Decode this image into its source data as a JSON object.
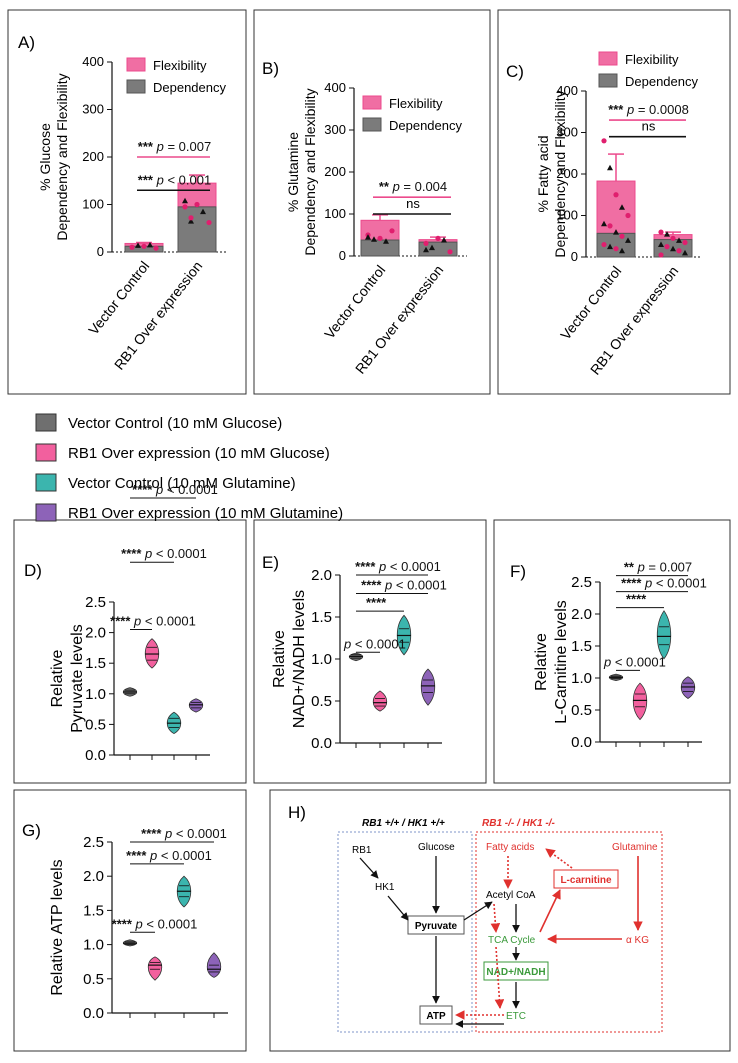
{
  "colors": {
    "flexibility": "#f06ea3",
    "flexibility_line": "#ec4a8c",
    "dependency": "#7b7b7b",
    "vector_glucose": "#6f6f6f",
    "rb1_glucose": "#f2609e",
    "vector_glutamine": "#3bb5ae",
    "rb1_glutamine": "#8d63b8",
    "pathway_red": "#e0312e",
    "pathway_green": "#3b9a3b",
    "pathway_blue_dash": "#7f95c9"
  },
  "top_categories": [
    "Vector Control",
    "RB1 Over expression"
  ],
  "top_legend": [
    "Flexibility",
    "Dependency"
  ],
  "legend": [
    {
      "label": "Vector Control (10 mM Glucose)",
      "color_key": "vector_glucose"
    },
    {
      "label": "RB1 Over expression (10 mM Glucose)",
      "color_key": "rb1_glucose"
    },
    {
      "label": "Vector Control (10 mM Glutamine)",
      "color_key": "vector_glutamine"
    },
    {
      "label": "RB1 Over expression (10 mM Glutamine)",
      "color_key": "rb1_glutamine"
    }
  ],
  "chart_data": [
    {
      "panel": "A)",
      "type": "bar",
      "ylabel_lines": [
        "% Glucose",
        "Dependency and Flexibility"
      ],
      "ylim": [
        0,
        400
      ],
      "yticks": [
        0,
        100,
        200,
        300,
        400
      ],
      "categories": [
        "Vector Control",
        "RB1 Over expression"
      ],
      "series": [
        {
          "name": "Dependency",
          "values": [
            12,
            95
          ]
        },
        {
          "name": "Flexibility",
          "values": [
            6,
            50
          ]
        }
      ],
      "error_top": [
        20,
        162
      ],
      "points": [
        [
          10,
          14,
          12,
          15,
          8
        ],
        [
          95,
          65,
          100,
          85,
          62,
          108,
          72
        ]
      ],
      "annotations": [
        {
          "stars": "***",
          "text": "p = 0.007",
          "color": "pink",
          "y": 200
        },
        {
          "stars": "***",
          "text": "p < 0.001",
          "color": "black",
          "y": 130
        }
      ]
    },
    {
      "panel": "B)",
      "type": "bar",
      "ylabel_lines": [
        "% Glutamine",
        "Dependency and Flexibility"
      ],
      "ylim": [
        0,
        400
      ],
      "yticks": [
        0,
        100,
        200,
        300,
        400
      ],
      "categories": [
        "Vector Control",
        "RB1 Over expression"
      ],
      "series": [
        {
          "name": "Dependency",
          "values": [
            38,
            33
          ]
        },
        {
          "name": "Flexibility",
          "values": [
            47,
            6
          ]
        }
      ],
      "error_top": [
        98,
        45
      ],
      "points": [
        [
          50,
          40,
          42,
          35,
          60,
          45
        ],
        [
          30,
          20,
          42,
          38,
          10,
          15
        ]
      ],
      "annotations": [
        {
          "stars": "**",
          "text": "p = 0.004",
          "color": "pink",
          "y": 140
        },
        {
          "stars": "",
          "text": "ns",
          "color": "black",
          "y": 100
        }
      ]
    },
    {
      "panel": "C)",
      "type": "bar",
      "ylabel_lines": [
        "% Fatty acid",
        "Dependency and Flexibility"
      ],
      "ylim": [
        0,
        400
      ],
      "yticks": [
        0,
        100,
        200,
        300,
        400
      ],
      "categories": [
        "Vector Control",
        "RB1 Over expression"
      ],
      "series": [
        {
          "name": "Dependency",
          "values": [
            57,
            42
          ]
        },
        {
          "name": "Flexibility",
          "values": [
            126,
            12
          ]
        }
      ],
      "error_top": [
        248,
        60
      ],
      "points": [
        [
          280,
          215,
          150,
          120,
          100,
          80,
          75,
          60,
          50,
          40,
          30,
          25,
          20,
          15
        ],
        [
          60,
          55,
          45,
          40,
          35,
          30,
          25,
          20,
          15,
          10,
          5
        ]
      ],
      "annotations": [
        {
          "stars": "***",
          "text": "p = 0.0008",
          "color": "pink",
          "y": 330
        },
        {
          "stars": "",
          "text": "ns",
          "color": "black",
          "y": 290
        }
      ]
    },
    {
      "panel": "D)",
      "type": "violin",
      "ylabel_lines": [
        "Relative",
        "Pyruvate levels"
      ],
      "ylim": [
        0,
        2.5
      ],
      "yticks": [
        0.0,
        0.5,
        1.0,
        1.5,
        2.0,
        2.5
      ],
      "groups": [
        {
          "color_key": "vector_glucose",
          "min": 0.96,
          "max": 1.1,
          "median": 1.03,
          "q1": 1.0,
          "q3": 1.06,
          "width": 0.55
        },
        {
          "color_key": "rb1_glucose",
          "min": 1.42,
          "max": 1.9,
          "median": 1.65,
          "q1": 1.55,
          "q3": 1.76,
          "width": 0.55
        },
        {
          "color_key": "vector_glutamine",
          "min": 0.35,
          "max": 0.7,
          "median": 0.52,
          "q1": 0.45,
          "q3": 0.6,
          "width": 0.55
        },
        {
          "color_key": "rb1_glutamine",
          "min": 0.7,
          "max": 0.92,
          "median": 0.82,
          "q1": 0.77,
          "q3": 0.86,
          "width": 0.55
        }
      ],
      "brackets": [
        {
          "stars": "****",
          "text": "p < 0.0001",
          "to": 2,
          "y": 2.05
        },
        {
          "stars": "****",
          "text": "p < 0.0001",
          "to": 3,
          "y": 3.15
        },
        {
          "stars": "****",
          "text": "p < 0.0001",
          "to": 4,
          "y": 4.2
        }
      ]
    },
    {
      "panel": "E)",
      "type": "violin",
      "ylabel_lines": [
        "Relative",
        "NAD+/NADH levels"
      ],
      "ylim": [
        0,
        2.0
      ],
      "yticks": [
        0.0,
        0.5,
        1.0,
        1.5,
        2.0
      ],
      "groups": [
        {
          "color_key": "vector_glucose",
          "min": 0.98,
          "max": 1.07,
          "median": 1.03,
          "q1": 1.01,
          "q3": 1.05,
          "width": 0.55
        },
        {
          "color_key": "rb1_glucose",
          "min": 0.38,
          "max": 0.62,
          "median": 0.48,
          "q1": 0.44,
          "q3": 0.53,
          "width": 0.55
        },
        {
          "color_key": "vector_glutamine",
          "min": 1.05,
          "max": 1.52,
          "median": 1.28,
          "q1": 1.2,
          "q3": 1.36,
          "width": 0.55
        },
        {
          "color_key": "rb1_glutamine",
          "min": 0.45,
          "max": 0.88,
          "median": 0.68,
          "q1": 0.6,
          "q3": 0.75,
          "width": 0.55
        }
      ],
      "brackets": [
        {
          "stars": "",
          "text": "p < 0.0001",
          "to": 2,
          "y": 1.08
        },
        {
          "stars": "****",
          "text": "",
          "to": 3,
          "y": 1.57
        },
        {
          "stars": "****",
          "text": "p < 0.0001",
          "to": 4,
          "y": 1.78
        }
      ],
      "extra_label": {
        "stars": "****",
        "text": "p < 0.0001",
        "y": 2.0,
        "to": 4
      }
    },
    {
      "panel": "F)",
      "type": "violin",
      "ylabel_lines": [
        "Relative",
        "L-Carnitine levels"
      ],
      "ylim": [
        0,
        2.5
      ],
      "yticks": [
        0.0,
        0.5,
        1.0,
        1.5,
        2.0,
        2.5
      ],
      "groups": [
        {
          "color_key": "vector_glucose",
          "min": 0.96,
          "max": 1.06,
          "median": 1.01,
          "q1": 0.99,
          "q3": 1.03,
          "width": 0.55
        },
        {
          "color_key": "rb1_glucose",
          "min": 0.35,
          "max": 0.92,
          "median": 0.65,
          "q1": 0.55,
          "q3": 0.75,
          "width": 0.55
        },
        {
          "color_key": "vector_glutamine",
          "min": 1.3,
          "max": 2.05,
          "median": 1.65,
          "q1": 1.52,
          "q3": 1.8,
          "width": 0.55
        },
        {
          "color_key": "rb1_glutamine",
          "min": 0.68,
          "max": 1.02,
          "median": 0.86,
          "q1": 0.79,
          "q3": 0.92,
          "width": 0.55
        }
      ],
      "brackets": [
        {
          "stars": "",
          "text": "p < 0.0001",
          "to": 2,
          "y": 1.12
        },
        {
          "stars": "****",
          "text": "",
          "to": 3,
          "y": 2.1
        },
        {
          "stars": "****",
          "text": "p < 0.0001",
          "to": 4,
          "y": 2.35
        }
      ],
      "extra_label": {
        "stars": "**",
        "text": "p = 0.007",
        "y": 2.6,
        "to": 4
      }
    },
    {
      "panel": "G)",
      "type": "violin",
      "ylabel_lines": [
        "Relative ATP levels"
      ],
      "ylim": [
        0,
        2.5
      ],
      "yticks": [
        0.0,
        0.5,
        1.0,
        1.5,
        2.0,
        2.5
      ],
      "groups": [
        {
          "color_key": "vector_glucose",
          "min": 0.98,
          "max": 1.07,
          "median": 1.02,
          "q1": 1.0,
          "q3": 1.04,
          "width": 0.55
        },
        {
          "color_key": "rb1_glucose",
          "min": 0.48,
          "max": 0.82,
          "median": 0.7,
          "q1": 0.64,
          "q3": 0.74,
          "width": 0.55
        },
        {
          "color_key": "vector_glutamine",
          "min": 1.55,
          "max": 2.0,
          "median": 1.78,
          "q1": 1.7,
          "q3": 1.86,
          "width": 0.55
        },
        {
          "color_key": "rb1_glutamine",
          "min": 0.52,
          "max": 0.88,
          "median": 0.64,
          "q1": 0.6,
          "q3": 0.7,
          "width": 0.55
        }
      ],
      "brackets": [
        {
          "stars": "****",
          "text": "p < 0.0001",
          "to": 2,
          "y": 1.18
        },
        {
          "stars": "****",
          "text": "p < 0.0001",
          "to": 3,
          "y": 2.18
        },
        {
          "stars": "****",
          "text": "p < 0.0001",
          "to": 4,
          "y": 2.5
        }
      ]
    }
  ],
  "pathway": {
    "panel": "H)",
    "left_title": "RB1 +/+ / HK1 +/+",
    "right_title": "RB1 -/- / HK1 -/-",
    "nodes": {
      "rb1": "RB1",
      "hk1": "HK1",
      "glucose": "Glucose",
      "pyruvate": "Pyruvate",
      "atp": "ATP",
      "fatty_acids": "Fatty acids",
      "acetyl_coa": "Acetyl CoA",
      "l_carnitine": "L-carnitine",
      "glutamine": "Glutamine",
      "tca": "TCA Cycle",
      "akg": "α KG",
      "nad": "NAD+/NADH",
      "etc": "ETC"
    }
  }
}
